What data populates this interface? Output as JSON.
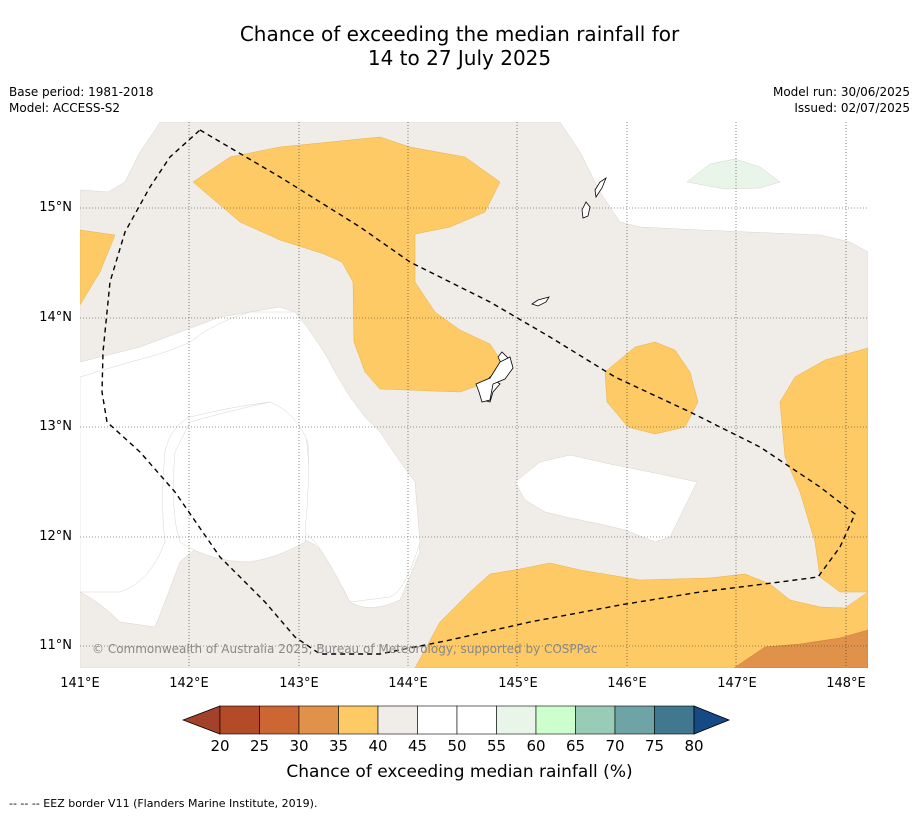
{
  "title": {
    "line1": "Chance of exceeding the median rainfall for",
    "line2": "14 to 27 July 2025"
  },
  "meta": {
    "base_period": "Base period: 1981-2018",
    "model": "Model: ACCESS-S2",
    "model_run": "Model run: 30/06/2025",
    "issued": "Issued: 02/07/2025"
  },
  "map": {
    "lat_labels": [
      "15°N",
      "14°N",
      "13°N",
      "12°N",
      "11°N"
    ],
    "lon_labels": [
      "141°E",
      "142°E",
      "143°E",
      "144°E",
      "145°E",
      "146°E",
      "147°E",
      "148°E"
    ],
    "copyright": "© Commonwealth of Australia 2025, Bureau of Meteorology, supported by COSPPac",
    "colors": {
      "c30_35": "#e0924a",
      "c35_40": "#fdca65",
      "c40_45": "#f0ece7",
      "c45_55": "#ffffff",
      "c55_60": "#e9f5e9"
    }
  },
  "colorbar": {
    "label": "Chance of exceeding median rainfall (%)",
    "ticks": [
      "20",
      "25",
      "30",
      "35",
      "40",
      "45",
      "50",
      "55",
      "60",
      "65",
      "70",
      "75",
      "80"
    ],
    "colors": [
      "#a4412a",
      "#b34b26",
      "#cc6632",
      "#e0924a",
      "#fdca65",
      "#f0ece7",
      "#ffffff",
      "#ffffff",
      "#e9f5e9",
      "#ccffcc",
      "#99ccb6",
      "#6fa4a6",
      "#42788f",
      "#154a86"
    ]
  },
  "footer": {
    "eez_legend": "--  --  -- EEZ border V11 (Flanders Marine Institute, 2019)."
  }
}
